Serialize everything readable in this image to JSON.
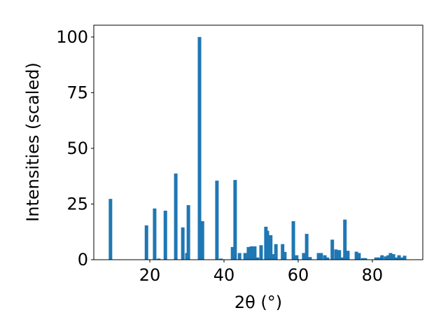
{
  "chart_data": {
    "type": "bar",
    "x_label": "2θ (°)",
    "y_label": "Intensities (scaled)",
    "color": "#1f77b4",
    "x": [
      9.4,
      19.1,
      21.3,
      22.4,
      24.2,
      27.0,
      28.9,
      30.0,
      30.4,
      33.4,
      34.2,
      38.1,
      39.2,
      42.3,
      43.0,
      44.2,
      45.7,
      46.6,
      47.4,
      48.3,
      49.0,
      50.0,
      51.3,
      51.7,
      52.6,
      53.2,
      54.0,
      55.8,
      56.4,
      58.7,
      59.6,
      61.5,
      62.3,
      63.2,
      65.5,
      66.2,
      67.2,
      67.9,
      69.2,
      70.2,
      71.1,
      71.9,
      72.6,
      73.4,
      75.7,
      76.4,
      77.4,
      78.1,
      81.0,
      81.7,
      82.6,
      83.6,
      84.3,
      84.9,
      85.7,
      86.4,
      87.2,
      87.9,
      88.7
    ],
    "values": [
      27.3,
      15.4,
      23,
      0.5,
      22,
      38.7,
      14.5,
      3,
      24.5,
      100,
      17.3,
      35.5,
      0.5,
      5.7,
      35.8,
      3,
      3,
      5.7,
      6,
      6,
      1,
      6.5,
      14.8,
      13,
      11,
      2.5,
      7,
      7,
      3.5,
      17.3,
      2,
      3,
      11.6,
      1.2,
      3,
      3,
      2,
      1,
      9,
      4.6,
      4.3,
      1,
      18,
      4,
      3.6,
      3,
      0.7,
      0.7,
      1,
      1,
      2,
      1.5,
      2,
      3,
      2.5,
      1,
      2,
      1,
      1.8
    ],
    "xlim": [
      4.9,
      93.6
    ],
    "ylim": [
      0,
      105.3
    ],
    "xticks": [
      20,
      40,
      60,
      80
    ],
    "yticks": [
      0,
      25,
      50,
      75,
      100
    ]
  }
}
